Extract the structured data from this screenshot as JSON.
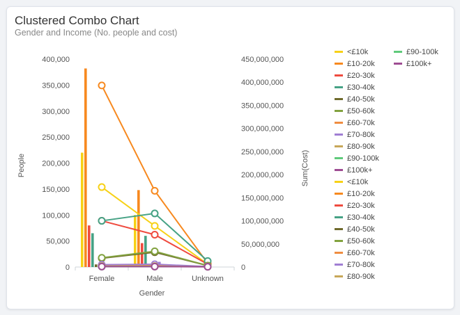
{
  "chart_data": {
    "type": "combo",
    "title": "Clustered Combo Chart",
    "subtitle": "Gender and Income (No. people and cost)",
    "xlabel": "Gender",
    "ylabel": "People",
    "y2label": "Sum(Cost)",
    "categories": [
      "Female",
      "Male",
      "Unknown"
    ],
    "ylim": [
      0,
      400000
    ],
    "y2lim": [
      0,
      450000000
    ],
    "yticks": [
      "0",
      "50,000",
      "100,000",
      "150,000",
      "200,000",
      "250,000",
      "300,000",
      "350,000",
      "400,000"
    ],
    "y2ticks": [
      "0",
      "50,000,000",
      "100,000,000",
      "150,000,000",
      "200,000,000",
      "250,000,000",
      "300,000,000",
      "350,000,000",
      "400,000,000",
      "450,000,000"
    ],
    "grid": false,
    "legend_position": "right",
    "bar_series": [
      {
        "name": "<£10k",
        "color": "#f7d117",
        "values": [
          220000,
          100000,
          0
        ]
      },
      {
        "name": "£10-20k",
        "color": "#f7891f",
        "values": [
          382000,
          148000,
          0
        ]
      },
      {
        "name": "£20-30k",
        "color": "#ef4b3f",
        "values": [
          80000,
          46000,
          0
        ]
      },
      {
        "name": "£30-40k",
        "color": "#46a285",
        "values": [
          65000,
          60000,
          0
        ]
      },
      {
        "name": "£40-50k",
        "color": "#6f6a2c",
        "values": [
          5000,
          5000,
          0
        ]
      },
      {
        "name": "£50-60k",
        "color": "#82a23f",
        "values": [
          4000,
          4000,
          0
        ]
      },
      {
        "name": "£60-70k",
        "color": "#ef8d41",
        "values": [
          3000,
          3000,
          0
        ]
      },
      {
        "name": "£70-80k",
        "color": "#a07ed3",
        "values": [
          3000,
          10000,
          0
        ]
      },
      {
        "name": "£80-90k",
        "color": "#c7a759",
        "values": [
          2000,
          2000,
          0
        ]
      },
      {
        "name": "£90-100k",
        "color": "#5fca7b",
        "values": [
          1500,
          1500,
          0
        ]
      },
      {
        "name": "£100k+",
        "color": "#9e4c92",
        "values": [
          1000,
          1000,
          0
        ]
      }
    ],
    "line_series": [
      {
        "name": "<£10k",
        "color": "#f7d117",
        "values": [
          173000000,
          89000000,
          6000000
        ]
      },
      {
        "name": "£10-20k",
        "color": "#f7891f",
        "values": [
          393000000,
          165000000,
          8000000
        ]
      },
      {
        "name": "£20-30k",
        "color": "#ef4b3f",
        "values": [
          100000000,
          70000000,
          6000000
        ]
      },
      {
        "name": "£30-40k",
        "color": "#46a285",
        "values": [
          100000000,
          116000000,
          13000000
        ]
      },
      {
        "name": "£40-50k",
        "color": "#6f6a2c",
        "values": [
          19000000,
          32000000,
          3000000
        ]
      },
      {
        "name": "£50-60k",
        "color": "#82a23f",
        "values": [
          20000000,
          34000000,
          3000000
        ]
      },
      {
        "name": "£60-70k",
        "color": "#ef8d41",
        "values": [
          3000000,
          3000000,
          1000000
        ]
      },
      {
        "name": "£70-80k",
        "color": "#a07ed3",
        "values": [
          5000000,
          6000000,
          1000000
        ]
      },
      {
        "name": "£80-90k",
        "color": "#c7a759",
        "values": [
          2000000,
          2000000,
          500000
        ]
      },
      {
        "name": "£90-100k",
        "color": "#5fca7b",
        "values": [
          1000000,
          1000000,
          500000
        ]
      },
      {
        "name": "£100k+",
        "color": "#9e4c92",
        "values": [
          1000000,
          1000000,
          500000
        ]
      }
    ],
    "legend": [
      "<£10k",
      "£10-20k",
      "£20-30k",
      "£30-40k",
      "£40-50k",
      "£50-60k",
      "£60-70k",
      "£70-80k",
      "£80-90k",
      "£90-100k",
      "£100k+",
      "<£10k",
      "£10-20k",
      "£20-30k",
      "£30-40k",
      "£40-50k",
      "£50-60k",
      "£60-70k",
      "£70-80k",
      "£80-90k",
      "£90-100k",
      "£100k+"
    ],
    "legend_colors": [
      "#f7d117",
      "#f7891f",
      "#ef4b3f",
      "#46a285",
      "#6f6a2c",
      "#82a23f",
      "#ef8d41",
      "#a07ed3",
      "#c7a759",
      "#5fca7b",
      "#9e4c92",
      "#f7d117",
      "#f7891f",
      "#ef4b3f",
      "#46a285",
      "#6f6a2c",
      "#82a23f",
      "#ef8d41",
      "#a07ed3",
      "#c7a759",
      "#5fca7b",
      "#9e4c92"
    ]
  }
}
